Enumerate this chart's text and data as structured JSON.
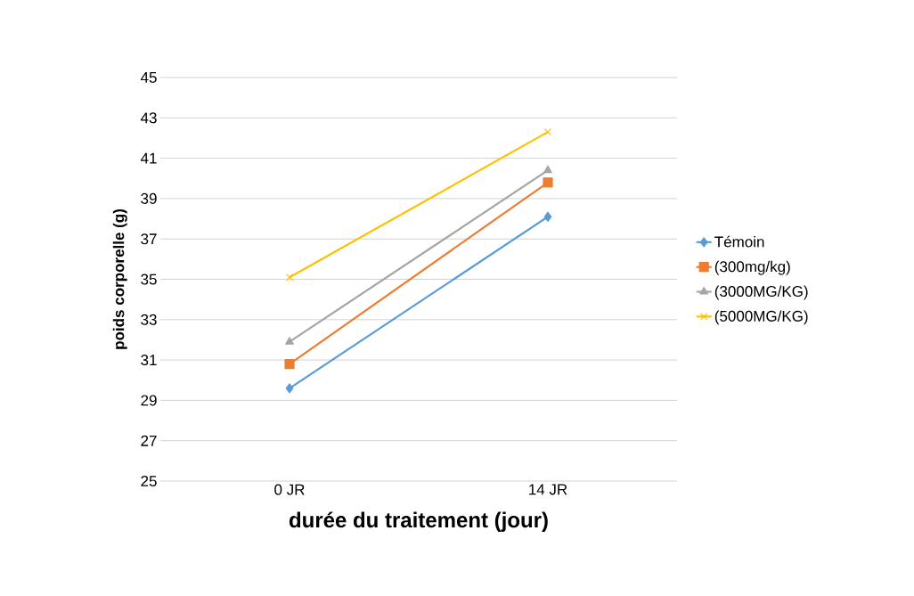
{
  "chart_data": {
    "type": "line",
    "xlabel": "durée du traitement (jour)",
    "ylabel": "poids corporelle (g)",
    "categories": [
      "0 JR",
      "14  JR"
    ],
    "series": [
      {
        "name": "Témoin",
        "color": "#5b9bd5",
        "marker": "diamond",
        "values": [
          29.6,
          38.1
        ]
      },
      {
        "name": "(300mg/kg)",
        "color": "#ed7d31",
        "marker": "square",
        "values": [
          30.8,
          39.8
        ]
      },
      {
        "name": "(3000MG/KG)",
        "color": "#a5a5a5",
        "marker": "triangle",
        "values": [
          31.9,
          40.4
        ]
      },
      {
        "name": "(5000MG/KG)",
        "color": "#ffc000",
        "marker": "cross",
        "values": [
          35.1,
          42.3
        ]
      }
    ],
    "ylim": [
      25,
      45
    ],
    "yticks": [
      25,
      27,
      29,
      31,
      33,
      35,
      37,
      39,
      41,
      43,
      45
    ],
    "grid": "y",
    "legend": "right"
  }
}
